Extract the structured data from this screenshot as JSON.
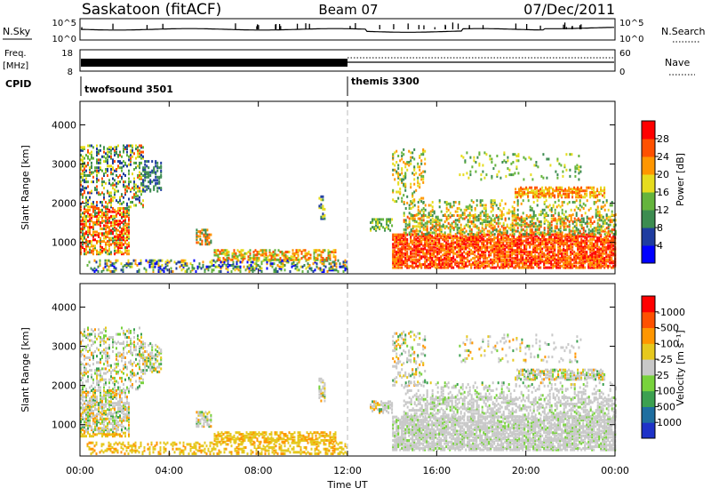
{
  "header": {
    "station": "Saskatoon (fitACF)",
    "beam": "Beam 07",
    "date": "07/Dec/2011"
  },
  "status_panels": {
    "nsky_label": "N.Sky",
    "nsky_ticks": [
      "10^5",
      "10^0"
    ],
    "nsearch_label": "N.Search",
    "nsearch_ticks": [
      "10^5",
      "10^0"
    ],
    "freq_label": "Freq.",
    "freq_unit": "[MHz]",
    "freq_ticks": [
      "18",
      "8"
    ],
    "nave_label": "Nave",
    "nave_ticks": [
      "60",
      "0"
    ],
    "cpid_label": "CPID",
    "cpid_segments": [
      {
        "name": "twofsound 3501",
        "start": "00:00"
      },
      {
        "name": "themis 3300",
        "start": "12:00"
      }
    ]
  },
  "chart_data": [
    {
      "type": "heatmap",
      "name": "power",
      "ylabel": "Slant Range [km]",
      "yticks": [
        1000,
        2000,
        3000,
        4000
      ],
      "ylim": [
        200,
        4600
      ],
      "colorbar_label": "Power [dB]",
      "colorbar_ticks": [
        "4",
        "8",
        "12",
        "16",
        "20",
        "24",
        "28"
      ],
      "colors": [
        "#0000ff",
        "#1e3ca0",
        "#3c8c50",
        "#64b43c",
        "#e6dc1e",
        "#ff9600",
        "#ff5000",
        "#ff0000"
      ],
      "xlim": [
        "00:00",
        "24:00"
      ]
    },
    {
      "type": "heatmap",
      "name": "velocity",
      "ylabel": "Slant Range [km]",
      "yticks": [
        1000,
        2000,
        3000,
        4000
      ],
      "ylim": [
        200,
        4600
      ],
      "colorbar_label": "Velocity [m s⁻¹]",
      "colorbar_ticks": [
        "1000",
        "500",
        "100",
        "25",
        "-25",
        "-100",
        "-500",
        "-1000"
      ],
      "colors": [
        "#1e32c8",
        "#1e6ea0",
        "#3ca050",
        "#78d23c",
        "#c8c8c8",
        "#e6c81e",
        "#ff9600",
        "#ff5000",
        "#ff0000"
      ],
      "xlabel": "Time UT",
      "xticks": [
        "00:00",
        "04:00",
        "08:00",
        "12:00",
        "16:00",
        "20:00",
        "00:00"
      ],
      "xlim": [
        "00:00",
        "24:00"
      ]
    }
  ]
}
